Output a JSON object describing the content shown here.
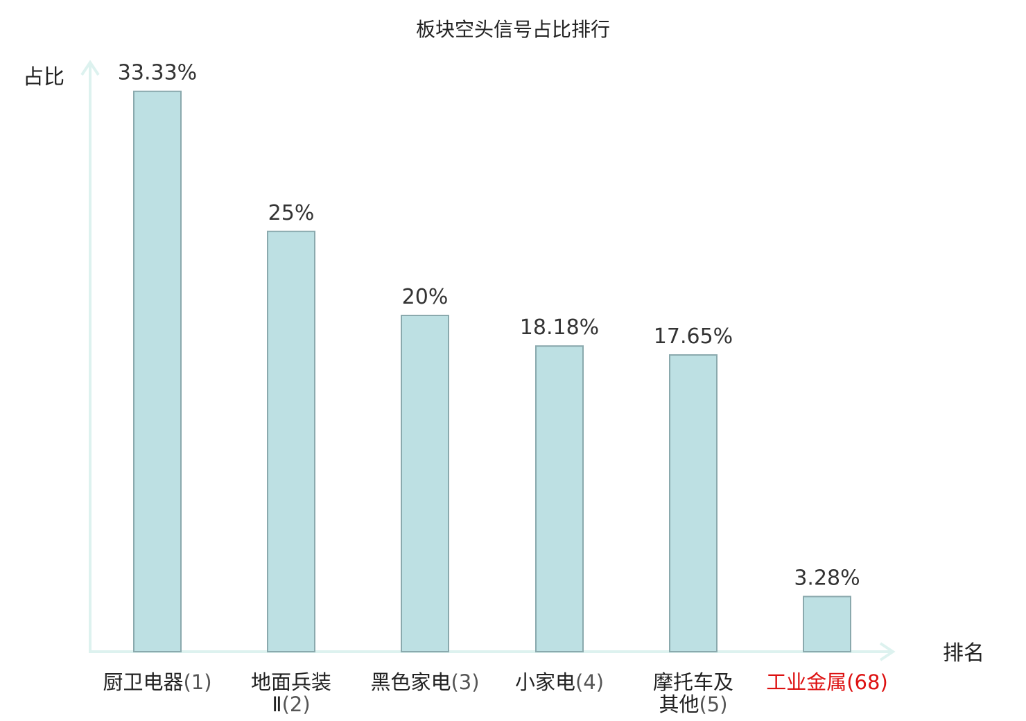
{
  "chart_data": {
    "type": "bar",
    "title": "板块空头信号占比排行",
    "ylabel": "占比",
    "xlabel": "排名",
    "ylim": [
      0,
      35
    ],
    "grid": false,
    "categories": [
      {
        "lines": [
          "厨卫电器"
        ],
        "rank": "(1)",
        "highlight": false
      },
      {
        "lines": [
          "地面兵装",
          "Ⅱ"
        ],
        "rank": "(2)",
        "highlight": false
      },
      {
        "lines": [
          "黑色家电"
        ],
        "rank": "(3)",
        "highlight": false
      },
      {
        "lines": [
          "小家电"
        ],
        "rank": "(4)",
        "highlight": false
      },
      {
        "lines": [
          "摩托车及",
          "其他"
        ],
        "rank": "(5)",
        "highlight": false
      },
      {
        "lines": [
          "工业金属"
        ],
        "rank": "(68)",
        "highlight": true
      }
    ],
    "values": [
      33.33,
      25,
      20,
      18.18,
      17.65,
      3.28
    ],
    "value_labels": [
      "33.33%",
      "25%",
      "20%",
      "18.18%",
      "17.65%",
      "3.28%"
    ],
    "colors": {
      "bar_fill": "#bde0e3",
      "bar_stroke": "#8aa9ad",
      "axis": "#ddf2ef",
      "highlight": "#dd1111"
    }
  }
}
